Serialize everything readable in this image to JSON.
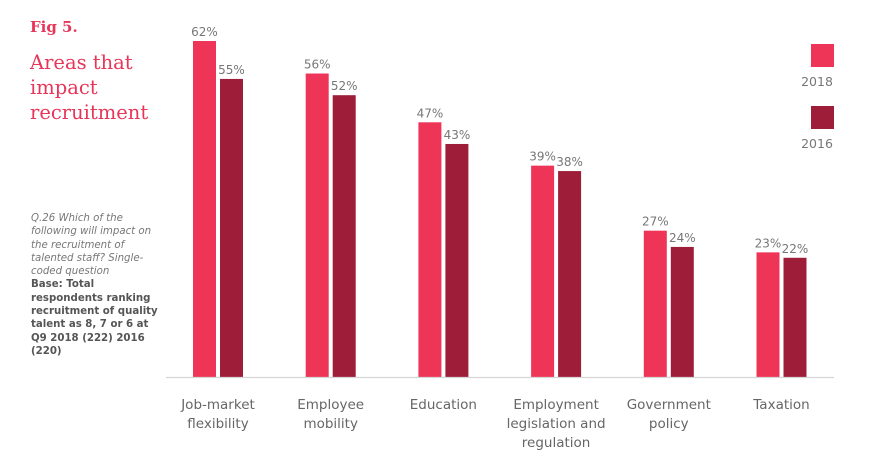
{
  "figure": {
    "label": "Fig 5.",
    "title": "Areas that impact recruitment",
    "question": "Q.26 Which of the following will impact on the recruitment of talented staff? Single-coded question",
    "base": "Base: Total respondents ranking recruitment of quality talent as 8, 7 or 6 at Q9 2018 (222) 2016 (220)"
  },
  "colors": {
    "series_2018": "#ee3558",
    "series_2016": "#9e1d38",
    "axis": "#d6d6d6",
    "accent": "#e8365a"
  },
  "chart_data": {
    "type": "bar",
    "title": "Areas that impact recruitment",
    "xlabel": "",
    "ylabel": "",
    "ylim": [
      0,
      62
    ],
    "grid": false,
    "legend_position": "top-right",
    "categories": [
      [
        "Job-market",
        "flexibility"
      ],
      [
        "Employee",
        "mobility"
      ],
      [
        "Education"
      ],
      [
        "Employment",
        "legislation and",
        "regulation"
      ],
      [
        "Government",
        "policy"
      ],
      [
        "Taxation"
      ]
    ],
    "series": [
      {
        "name": "2018",
        "values": [
          62,
          56,
          47,
          39,
          27,
          23
        ],
        "labels": [
          "62%",
          "56%",
          "47%",
          "39%",
          "27%",
          "23%"
        ]
      },
      {
        "name": "2016",
        "values": [
          55,
          52,
          43,
          38,
          24,
          22
        ],
        "labels": [
          "55%",
          "52%",
          "43%",
          "38%",
          "24%",
          "22%"
        ]
      }
    ]
  }
}
